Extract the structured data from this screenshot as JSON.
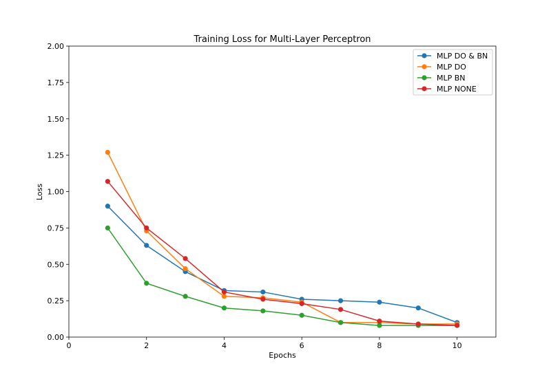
{
  "chart_data": {
    "type": "line",
    "title": "Training Loss for Multi-Layer Perceptron",
    "xlabel": "Epochs",
    "ylabel": "Loss",
    "xlim": [
      0,
      11
    ],
    "ylim": [
      0,
      2.0
    ],
    "xticks": [
      0,
      2,
      4,
      6,
      8,
      10
    ],
    "yticks": [
      "0.00",
      "0.25",
      "0.50",
      "0.75",
      "1.00",
      "1.25",
      "1.50",
      "1.75",
      "2.00"
    ],
    "grid": false,
    "legend_position": "top-right",
    "x": [
      1,
      2,
      3,
      4,
      5,
      6,
      7,
      8,
      9,
      10
    ],
    "series": [
      {
        "name": "MLP DO & BN",
        "color": "#1f77b4",
        "values": [
          0.9,
          0.63,
          0.45,
          0.32,
          0.31,
          0.26,
          0.25,
          0.24,
          0.2,
          0.1
        ]
      },
      {
        "name": "MLP DO",
        "color": "#ff7f0e",
        "values": [
          1.27,
          0.73,
          0.47,
          0.28,
          0.27,
          0.24,
          0.1,
          0.1,
          0.09,
          0.09
        ]
      },
      {
        "name": "MLP BN",
        "color": "#2ca02c",
        "values": [
          0.75,
          0.37,
          0.28,
          0.2,
          0.18,
          0.15,
          0.1,
          0.08,
          0.08,
          0.08
        ]
      },
      {
        "name": "MLP NONE",
        "color": "#d62728",
        "values": [
          1.07,
          0.75,
          0.54,
          0.31,
          0.26,
          0.23,
          0.19,
          0.11,
          0.09,
          0.08
        ]
      }
    ]
  }
}
